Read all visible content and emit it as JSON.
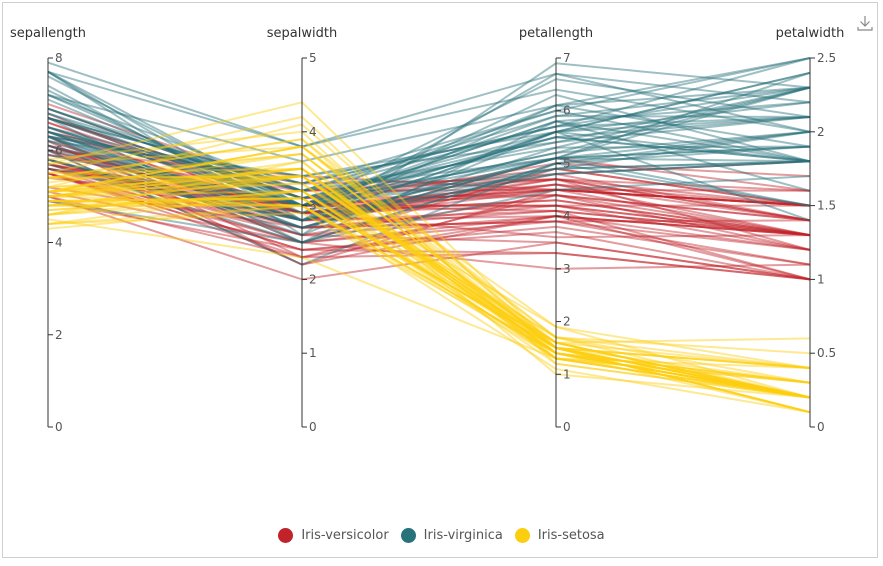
{
  "chart_data": {
    "type": "parallel",
    "dimensions": [
      {
        "name": "sepallength",
        "min": 0,
        "max": 8,
        "ticks": [
          0,
          2,
          4,
          6,
          8
        ]
      },
      {
        "name": "sepalwidth",
        "min": 0,
        "max": 5,
        "ticks": [
          0,
          1,
          2,
          3,
          4,
          5
        ]
      },
      {
        "name": "petallength",
        "min": 0,
        "max": 7,
        "ticks": [
          0,
          1,
          2,
          3,
          4,
          5,
          6,
          7
        ]
      },
      {
        "name": "petalwidth",
        "min": 0,
        "max": 2.5,
        "ticks": [
          0,
          0.5,
          1,
          1.5,
          2,
          2.5
        ]
      }
    ],
    "legend_position": "bottom",
    "series": [
      {
        "name": "Iris-versicolor",
        "color": "#c1232b",
        "rows": [
          [
            7.0,
            3.2,
            4.7,
            1.4
          ],
          [
            6.4,
            3.2,
            4.5,
            1.5
          ],
          [
            6.9,
            3.1,
            4.9,
            1.5
          ],
          [
            5.5,
            2.3,
            4.0,
            1.3
          ],
          [
            6.5,
            2.8,
            4.6,
            1.5
          ],
          [
            5.7,
            2.8,
            4.5,
            1.3
          ],
          [
            6.3,
            3.3,
            4.7,
            1.6
          ],
          [
            4.9,
            2.4,
            3.3,
            1.0
          ],
          [
            6.6,
            2.9,
            4.6,
            1.3
          ],
          [
            5.2,
            2.7,
            3.9,
            1.4
          ],
          [
            5.0,
            2.0,
            3.5,
            1.0
          ],
          [
            5.9,
            3.0,
            4.2,
            1.5
          ],
          [
            6.0,
            2.2,
            4.0,
            1.0
          ],
          [
            6.1,
            2.9,
            4.7,
            1.4
          ],
          [
            5.6,
            2.9,
            3.6,
            1.3
          ],
          [
            6.7,
            3.1,
            4.4,
            1.4
          ],
          [
            5.6,
            3.0,
            4.5,
            1.5
          ],
          [
            5.8,
            2.7,
            4.1,
            1.0
          ],
          [
            6.2,
            2.2,
            4.5,
            1.5
          ],
          [
            5.6,
            2.5,
            3.9,
            1.1
          ],
          [
            5.9,
            3.2,
            4.8,
            1.8
          ],
          [
            6.1,
            2.8,
            4.0,
            1.3
          ],
          [
            6.3,
            2.5,
            4.9,
            1.5
          ],
          [
            6.1,
            2.8,
            4.7,
            1.2
          ],
          [
            6.4,
            2.9,
            4.3,
            1.3
          ],
          [
            6.6,
            3.0,
            4.4,
            1.4
          ],
          [
            6.8,
            2.8,
            4.8,
            1.4
          ],
          [
            6.7,
            3.0,
            5.0,
            1.7
          ],
          [
            6.0,
            2.9,
            4.5,
            1.5
          ],
          [
            5.7,
            2.6,
            3.5,
            1.0
          ],
          [
            5.5,
            2.4,
            3.8,
            1.1
          ],
          [
            5.5,
            2.4,
            3.7,
            1.0
          ],
          [
            5.8,
            2.7,
            3.9,
            1.2
          ],
          [
            6.0,
            2.7,
            5.1,
            1.6
          ],
          [
            5.4,
            3.0,
            4.5,
            1.5
          ],
          [
            6.0,
            3.4,
            4.5,
            1.6
          ],
          [
            6.7,
            3.1,
            4.7,
            1.5
          ],
          [
            6.3,
            2.3,
            4.4,
            1.3
          ],
          [
            5.6,
            3.0,
            4.1,
            1.3
          ],
          [
            5.5,
            2.5,
            4.0,
            1.3
          ],
          [
            5.5,
            2.6,
            4.4,
            1.2
          ],
          [
            6.1,
            3.0,
            4.6,
            1.4
          ],
          [
            5.8,
            2.6,
            4.0,
            1.2
          ],
          [
            5.0,
            2.3,
            3.3,
            1.0
          ],
          [
            5.6,
            2.7,
            4.2,
            1.3
          ],
          [
            5.7,
            3.0,
            4.2,
            1.2
          ],
          [
            5.7,
            2.9,
            4.2,
            1.3
          ],
          [
            6.2,
            2.9,
            4.3,
            1.3
          ],
          [
            5.1,
            2.5,
            3.0,
            1.1
          ],
          [
            5.7,
            2.8,
            4.1,
            1.3
          ]
        ]
      },
      {
        "name": "Iris-virginica",
        "color": "#27727b",
        "rows": [
          [
            6.3,
            3.3,
            6.0,
            2.5
          ],
          [
            5.8,
            2.7,
            5.1,
            1.9
          ],
          [
            7.1,
            3.0,
            5.9,
            2.1
          ],
          [
            6.3,
            2.9,
            5.6,
            1.8
          ],
          [
            6.5,
            3.0,
            5.8,
            2.2
          ],
          [
            7.6,
            3.0,
            6.6,
            2.1
          ],
          [
            4.9,
            2.5,
            4.5,
            1.7
          ],
          [
            7.3,
            2.9,
            6.3,
            1.8
          ],
          [
            6.7,
            2.5,
            5.8,
            1.8
          ],
          [
            7.2,
            3.6,
            6.1,
            2.5
          ],
          [
            6.5,
            3.2,
            5.1,
            2.0
          ],
          [
            6.4,
            2.7,
            5.3,
            1.9
          ],
          [
            6.8,
            3.0,
            5.5,
            2.1
          ],
          [
            5.7,
            2.5,
            5.0,
            2.0
          ],
          [
            5.8,
            2.8,
            5.1,
            2.4
          ],
          [
            6.4,
            3.2,
            5.3,
            2.3
          ],
          [
            6.5,
            3.0,
            5.5,
            1.8
          ],
          [
            7.7,
            3.8,
            6.7,
            2.2
          ],
          [
            7.7,
            2.6,
            6.9,
            2.3
          ],
          [
            6.0,
            2.2,
            5.0,
            1.5
          ],
          [
            6.9,
            3.2,
            5.7,
            2.3
          ],
          [
            5.6,
            2.8,
            4.9,
            2.0
          ],
          [
            7.7,
            2.8,
            6.7,
            2.0
          ],
          [
            6.3,
            2.7,
            4.9,
            1.8
          ],
          [
            6.7,
            3.3,
            5.7,
            2.1
          ],
          [
            7.2,
            3.2,
            6.0,
            1.8
          ],
          [
            6.2,
            2.8,
            4.8,
            1.8
          ],
          [
            6.1,
            3.0,
            4.9,
            1.8
          ],
          [
            6.4,
            2.8,
            5.6,
            2.1
          ],
          [
            7.2,
            3.0,
            5.8,
            1.6
          ],
          [
            7.4,
            2.8,
            6.1,
            1.9
          ],
          [
            7.9,
            3.8,
            6.4,
            2.0
          ],
          [
            6.4,
            2.8,
            5.6,
            2.2
          ],
          [
            6.3,
            2.8,
            5.1,
            1.5
          ],
          [
            6.1,
            2.6,
            5.6,
            1.4
          ],
          [
            7.7,
            3.0,
            6.1,
            2.3
          ],
          [
            6.3,
            3.4,
            5.6,
            2.4
          ],
          [
            6.4,
            3.1,
            5.5,
            1.8
          ],
          [
            6.0,
            3.0,
            4.8,
            1.8
          ],
          [
            6.9,
            3.1,
            5.4,
            2.1
          ],
          [
            6.7,
            3.1,
            5.6,
            2.4
          ],
          [
            6.9,
            3.1,
            5.1,
            2.3
          ],
          [
            5.8,
            2.7,
            5.1,
            1.9
          ],
          [
            6.8,
            3.2,
            5.9,
            2.3
          ],
          [
            6.7,
            3.3,
            5.7,
            2.5
          ],
          [
            6.7,
            3.0,
            5.2,
            2.3
          ],
          [
            6.3,
            2.5,
            5.0,
            1.9
          ],
          [
            6.5,
            3.0,
            5.2,
            2.0
          ],
          [
            6.2,
            3.4,
            5.4,
            2.3
          ],
          [
            5.9,
            3.0,
            5.1,
            1.8
          ]
        ]
      },
      {
        "name": "Iris-setosa",
        "color": "#fcce10",
        "rows": [
          [
            5.1,
            3.5,
            1.4,
            0.2
          ],
          [
            4.9,
            3.0,
            1.4,
            0.2
          ],
          [
            4.7,
            3.2,
            1.3,
            0.2
          ],
          [
            4.6,
            3.1,
            1.5,
            0.2
          ],
          [
            5.0,
            3.6,
            1.4,
            0.2
          ],
          [
            5.4,
            3.9,
            1.7,
            0.4
          ],
          [
            4.6,
            3.4,
            1.4,
            0.3
          ],
          [
            5.0,
            3.4,
            1.5,
            0.2
          ],
          [
            4.4,
            2.9,
            1.4,
            0.2
          ],
          [
            4.9,
            3.1,
            1.5,
            0.1
          ],
          [
            5.4,
            3.7,
            1.5,
            0.2
          ],
          [
            4.8,
            3.4,
            1.6,
            0.2
          ],
          [
            4.8,
            3.0,
            1.4,
            0.1
          ],
          [
            4.3,
            3.0,
            1.1,
            0.1
          ],
          [
            5.8,
            4.0,
            1.2,
            0.2
          ],
          [
            5.7,
            4.4,
            1.5,
            0.4
          ],
          [
            5.4,
            3.9,
            1.3,
            0.4
          ],
          [
            5.1,
            3.5,
            1.4,
            0.3
          ],
          [
            5.7,
            3.8,
            1.7,
            0.3
          ],
          [
            5.1,
            3.8,
            1.5,
            0.3
          ],
          [
            5.4,
            3.4,
            1.7,
            0.2
          ],
          [
            5.1,
            3.7,
            1.5,
            0.4
          ],
          [
            4.6,
            3.6,
            1.0,
            0.2
          ],
          [
            5.1,
            3.3,
            1.7,
            0.5
          ],
          [
            4.8,
            3.4,
            1.9,
            0.2
          ],
          [
            5.0,
            3.0,
            1.6,
            0.2
          ],
          [
            5.0,
            3.4,
            1.6,
            0.4
          ],
          [
            5.2,
            3.5,
            1.5,
            0.2
          ],
          [
            5.2,
            3.4,
            1.4,
            0.2
          ],
          [
            4.7,
            3.2,
            1.6,
            0.2
          ],
          [
            4.8,
            3.1,
            1.6,
            0.2
          ],
          [
            5.4,
            3.4,
            1.5,
            0.4
          ],
          [
            5.2,
            4.1,
            1.5,
            0.1
          ],
          [
            5.5,
            4.2,
            1.4,
            0.2
          ],
          [
            4.9,
            3.1,
            1.5,
            0.1
          ],
          [
            5.0,
            3.2,
            1.2,
            0.2
          ],
          [
            5.5,
            3.5,
            1.3,
            0.2
          ],
          [
            4.9,
            3.1,
            1.5,
            0.1
          ],
          [
            4.4,
            3.0,
            1.3,
            0.2
          ],
          [
            5.1,
            3.4,
            1.5,
            0.2
          ],
          [
            5.0,
            3.5,
            1.3,
            0.3
          ],
          [
            4.5,
            2.3,
            1.3,
            0.3
          ],
          [
            4.4,
            3.2,
            1.3,
            0.2
          ],
          [
            5.0,
            3.5,
            1.6,
            0.6
          ],
          [
            5.1,
            3.8,
            1.9,
            0.4
          ],
          [
            4.8,
            3.0,
            1.4,
            0.3
          ],
          [
            5.1,
            3.8,
            1.6,
            0.2
          ],
          [
            4.6,
            3.2,
            1.4,
            0.2
          ],
          [
            5.3,
            3.7,
            1.5,
            0.2
          ],
          [
            5.0,
            3.3,
            1.4,
            0.2
          ]
        ]
      }
    ]
  },
  "toolbar": {
    "download_icon": "download-icon"
  }
}
